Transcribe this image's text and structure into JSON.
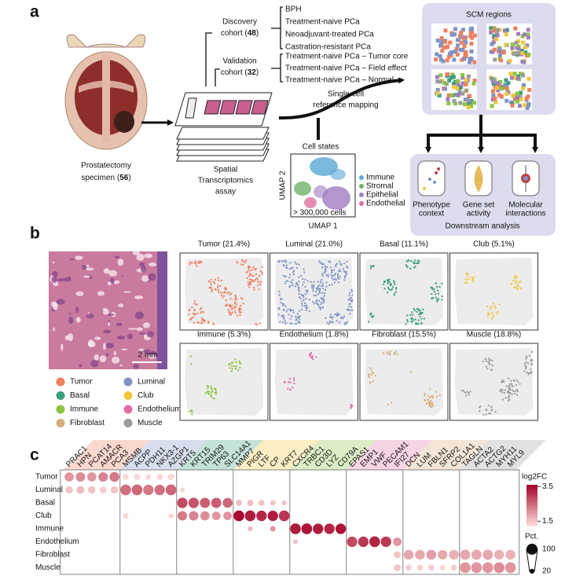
{
  "panel_a": {
    "label": "a",
    "specimen": {
      "line1": "Prostatectomy",
      "line2_before": "specimen (",
      "count": 56,
      "line2_after": ")"
    },
    "discovery": {
      "line1": "Discovery",
      "line2_before": "cohort (",
      "count": 48,
      "line2_after": ")",
      "groups": [
        "BPH",
        "Treatment-naive PCa",
        "Neoadjuvant-treated PCa",
        "Castration-resistant PCa"
      ]
    },
    "validation": {
      "line1": "Validation",
      "line2_before": "cohort (",
      "count": 32,
      "line2_after": ")",
      "groups": [
        "Treatment-naive PCa – Tumor core",
        "Treatment-naive PCa – Field effect",
        "Treatment-naive PCa – Normal"
      ]
    },
    "assay": [
      "Spatial",
      "Transcriptomics",
      "assay"
    ],
    "mapping": [
      "Single-cell",
      "reference mapping"
    ],
    "cell_states": {
      "title": "Cell states",
      "x_label": "UMAP 1",
      "y_label": "UMAP 2",
      "note": "> 300,000 cells",
      "legend": [
        {
          "name": "Immune",
          "color": "#5aa9d6"
        },
        {
          "name": "Stromal",
          "color": "#6fb36a"
        },
        {
          "name": "Epithelial",
          "color": "#a07cc0"
        },
        {
          "name": "Endothelial",
          "color": "#e070a0"
        }
      ]
    },
    "scm": {
      "title": "SCM regions"
    },
    "downstream": {
      "title": "Downstream analysis",
      "items": [
        [
          "Phenotype",
          "context"
        ],
        [
          "Gene set",
          "activity"
        ],
        [
          "Molecular",
          "interactions"
        ]
      ]
    }
  },
  "panel_b": {
    "label": "b",
    "scale_bar": "2 mm",
    "legend": [
      {
        "name": "Tumor",
        "color": "#ef7f5e"
      },
      {
        "name": "Luminal",
        "color": "#7f93c6"
      },
      {
        "name": "Basal",
        "color": "#3a9e7e"
      },
      {
        "name": "Club",
        "color": "#f3c63c"
      },
      {
        "name": "Immune",
        "color": "#8cc540"
      },
      {
        "name": "Endothelium",
        "color": "#e06fa8"
      },
      {
        "name": "Fibroblast",
        "color": "#d7ad7a"
      },
      {
        "name": "Muscle",
        "color": "#9b9b9b"
      }
    ],
    "maps": [
      "Tumor (21.4%)",
      "Luminal (21.0%)",
      "Basal (11.1%)",
      "Club (5.1%)",
      "Immune (5.3%)",
      "Endothelium (1.8%)",
      "Fibroblast (15.5%)",
      "Muscle (18.8%)"
    ]
  },
  "panel_c": {
    "label": "c",
    "genes": [
      "PRAC1",
      "HPN",
      "PCAT14",
      "AMACR",
      "PCA3",
      "MSMB",
      "ACPP",
      "PDH11",
      "NKX3-1",
      "AZGP1",
      "KRT5",
      "KRT15",
      "TRIM29",
      "TP63",
      "SLC14A1",
      "MMP7",
      "PIGR",
      "LTF",
      "CP",
      "KRT7",
      "CXCR4",
      "TRBC1",
      "CD3D",
      "LYZ",
      "CD79A",
      "EPAS1",
      "EMP1",
      "VWF",
      "PECAM1",
      "IFI27",
      "DCN",
      "LUM",
      "FBLN1",
      "SFRP2",
      "COL1A1",
      "TAGLN",
      "ACTA2",
      "ACTG2",
      "MYH11",
      "MYL9"
    ],
    "rows": [
      {
        "name": "Tumor",
        "pct": [
          70,
          75,
          70,
          75,
          80,
          30,
          30,
          25,
          30,
          35,
          null,
          null,
          null,
          null,
          null,
          null,
          null,
          null,
          null,
          null,
          null,
          null,
          null,
          null,
          null,
          null,
          null,
          null,
          null,
          null,
          null,
          null,
          null,
          null,
          null,
          null,
          null,
          null,
          null,
          null
        ],
        "log2fc": [
          2.0,
          2.1,
          2.0,
          2.2,
          2.3,
          1.3,
          1.3,
          1.3,
          1.3,
          1.3,
          null,
          null,
          null,
          null,
          null,
          null,
          null,
          null,
          null,
          null,
          null,
          null,
          null,
          null,
          null,
          null,
          null,
          null,
          null,
          null,
          null,
          null,
          null,
          null,
          null,
          null,
          null,
          null,
          null,
          null
        ]
      },
      {
        "name": "Luminal",
        "pct": [
          45,
          50,
          45,
          40,
          45,
          95,
          95,
          90,
          90,
          95,
          20,
          null,
          null,
          null,
          null,
          null,
          null,
          null,
          null,
          null,
          null,
          null,
          null,
          null,
          null,
          null,
          null,
          null,
          null,
          null,
          null,
          null,
          null,
          null,
          null,
          null,
          null,
          null,
          null,
          null
        ],
        "log2fc": [
          1.5,
          1.6,
          1.5,
          1.4,
          1.5,
          2.4,
          2.5,
          2.3,
          2.4,
          2.5,
          1.3,
          null,
          null,
          null,
          null,
          null,
          null,
          null,
          null,
          null,
          null,
          null,
          null,
          null,
          null,
          null,
          null,
          null,
          null,
          null,
          null,
          null,
          null,
          null,
          null,
          null,
          null,
          null,
          null,
          null
        ]
      },
      {
        "name": "Basal",
        "pct": [
          null,
          null,
          null,
          null,
          null,
          null,
          null,
          null,
          null,
          null,
          90,
          90,
          85,
          85,
          80,
          30,
          30,
          30,
          25,
          20,
          null,
          null,
          null,
          null,
          null,
          null,
          null,
          null,
          null,
          null,
          null,
          null,
          null,
          null,
          null,
          null,
          null,
          null,
          null,
          null
        ],
        "log2fc": [
          null,
          null,
          null,
          null,
          null,
          null,
          null,
          null,
          null,
          null,
          2.8,
          2.7,
          2.6,
          2.6,
          2.5,
          1.6,
          1.6,
          1.5,
          1.5,
          1.5,
          null,
          null,
          null,
          null,
          null,
          null,
          null,
          null,
          null,
          null,
          null,
          null,
          null,
          null,
          null,
          null,
          null,
          null,
          null,
          null
        ]
      },
      {
        "name": "Club",
        "pct": [
          null,
          null,
          null,
          null,
          null,
          25,
          null,
          null,
          null,
          25,
          75,
          75,
          70,
          60,
          60,
          95,
          95,
          90,
          90,
          95,
          null,
          null,
          null,
          null,
          null,
          null,
          null,
          null,
          null,
          null,
          null,
          null,
          null,
          null,
          null,
          null,
          null,
          null,
          null,
          null
        ],
        "log2fc": [
          null,
          null,
          null,
          null,
          null,
          1.3,
          null,
          null,
          null,
          1.3,
          2.3,
          2.2,
          2.1,
          2.0,
          2.0,
          3.5,
          3.3,
          3.2,
          3.3,
          3.0,
          null,
          null,
          null,
          null,
          null,
          null,
          null,
          null,
          null,
          null,
          null,
          null,
          null,
          null,
          null,
          null,
          null,
          null,
          null,
          null
        ]
      },
      {
        "name": "Immune",
        "pct": [
          null,
          null,
          null,
          null,
          null,
          null,
          null,
          null,
          null,
          null,
          null,
          null,
          null,
          null,
          null,
          null,
          20,
          null,
          25,
          null,
          95,
          95,
          90,
          90,
          90,
          null,
          null,
          null,
          null,
          null,
          null,
          null,
          null,
          null,
          null,
          null,
          null,
          null,
          null,
          null
        ],
        "log2fc": [
          null,
          null,
          null,
          null,
          null,
          null,
          null,
          null,
          null,
          null,
          null,
          null,
          null,
          null,
          null,
          null,
          1.6,
          null,
          2.0,
          null,
          3.3,
          3.4,
          3.3,
          3.2,
          3.4,
          null,
          null,
          null,
          null,
          null,
          null,
          null,
          null,
          null,
          null,
          null,
          null,
          null,
          null,
          null
        ]
      },
      {
        "name": "Endothelium",
        "pct": [
          null,
          null,
          null,
          null,
          null,
          null,
          null,
          null,
          null,
          null,
          null,
          null,
          null,
          null,
          null,
          null,
          null,
          null,
          null,
          null,
          20,
          null,
          null,
          null,
          null,
          90,
          90,
          95,
          90,
          60,
          null,
          null,
          null,
          null,
          null,
          null,
          null,
          null,
          null,
          null
        ],
        "log2fc": [
          null,
          null,
          null,
          null,
          null,
          null,
          null,
          null,
          null,
          null,
          null,
          null,
          null,
          null,
          null,
          null,
          null,
          null,
          null,
          null,
          1.5,
          null,
          null,
          null,
          null,
          2.8,
          3.0,
          3.2,
          3.0,
          2.0,
          null,
          null,
          null,
          null,
          null,
          null,
          null,
          null,
          null,
          null
        ]
      },
      {
        "name": "Fibroblast",
        "pct": [
          null,
          null,
          null,
          null,
          null,
          null,
          null,
          null,
          null,
          null,
          null,
          null,
          null,
          null,
          null,
          null,
          null,
          null,
          null,
          null,
          null,
          null,
          null,
          null,
          null,
          null,
          null,
          null,
          null,
          40,
          80,
          80,
          80,
          75,
          80,
          85,
          85,
          85,
          80,
          80
        ],
        "log2fc": [
          null,
          null,
          null,
          null,
          null,
          null,
          null,
          null,
          null,
          null,
          null,
          null,
          null,
          null,
          null,
          null,
          null,
          null,
          null,
          null,
          null,
          null,
          null,
          null,
          null,
          null,
          null,
          null,
          null,
          1.5,
          1.8,
          1.8,
          1.9,
          1.8,
          1.7,
          1.8,
          1.8,
          1.8,
          1.7,
          1.7
        ]
      },
      {
        "name": "Muscle",
        "pct": [
          null,
          null,
          null,
          null,
          null,
          null,
          null,
          null,
          null,
          null,
          null,
          null,
          null,
          null,
          null,
          null,
          null,
          null,
          null,
          null,
          null,
          null,
          null,
          null,
          null,
          null,
          null,
          null,
          null,
          40,
          30,
          30,
          30,
          25,
          30,
          95,
          95,
          95,
          95,
          95
        ],
        "log2fc": [
          null,
          null,
          null,
          null,
          null,
          null,
          null,
          null,
          null,
          null,
          null,
          null,
          null,
          null,
          null,
          null,
          null,
          null,
          null,
          null,
          null,
          null,
          null,
          null,
          null,
          null,
          null,
          null,
          null,
          1.5,
          1.4,
          1.4,
          1.4,
          1.3,
          1.4,
          2.0,
          2.0,
          2.0,
          2.1,
          2.0
        ]
      }
    ],
    "colorbar": {
      "title": "log2FC",
      "lim": [
        1.2,
        3.6
      ],
      "ticks": [
        1.5,
        3.5
      ]
    },
    "size_legend": {
      "title": "Pct.",
      "ticks": [
        100,
        20
      ]
    }
  }
}
